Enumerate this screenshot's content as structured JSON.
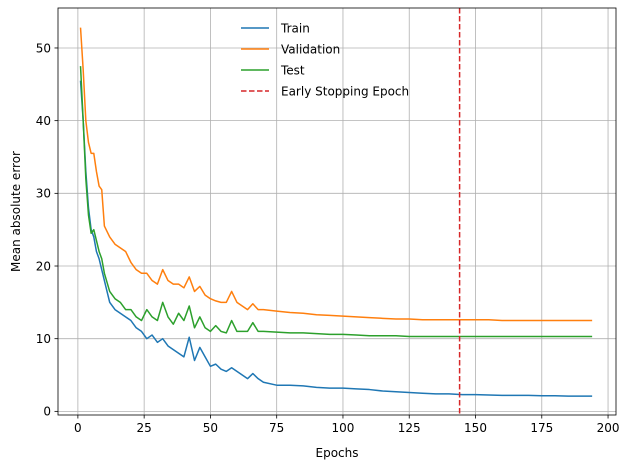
{
  "chart_data": {
    "type": "line",
    "title": "",
    "xlabel": "Epochs",
    "ylabel": "Mean absolute error",
    "xlim": [
      -7.5,
      203
    ],
    "ylim": [
      -0.5,
      55.5
    ],
    "xticks": [
      0,
      25,
      50,
      75,
      100,
      125,
      150,
      175,
      200
    ],
    "yticks": [
      0,
      10,
      20,
      30,
      40,
      50
    ],
    "grid": true,
    "legend": "upper-center",
    "colors": {
      "Train": "#1f77b4",
      "Validation": "#ff7f0e",
      "Test": "#2ca02c",
      "Early Stopping Epoch": "#d62728"
    },
    "series": [
      {
        "name": "Train",
        "x": [
          1,
          2,
          3,
          4,
          5,
          6,
          7,
          8,
          9,
          10,
          12,
          14,
          16,
          18,
          20,
          22,
          24,
          26,
          28,
          30,
          32,
          34,
          36,
          38,
          40,
          42,
          44,
          46,
          48,
          50,
          52,
          54,
          56,
          58,
          60,
          62,
          64,
          66,
          68,
          70,
          75,
          80,
          85,
          90,
          95,
          100,
          105,
          110,
          115,
          120,
          125,
          130,
          135,
          140,
          145,
          150,
          155,
          160,
          165,
          170,
          175,
          180,
          185,
          190,
          194
        ],
        "y": [
          45.5,
          40,
          33,
          28,
          25,
          24,
          22,
          21,
          19.5,
          18,
          15,
          14,
          13.5,
          13,
          12.5,
          11.5,
          11,
          10,
          10.5,
          9.5,
          10,
          9,
          8.5,
          8,
          7.5,
          10.2,
          7,
          8.8,
          7.5,
          6.2,
          6.5,
          5.8,
          5.5,
          6,
          5.5,
          5,
          4.5,
          5.2,
          4.5,
          4,
          3.6,
          3.6,
          3.5,
          3.3,
          3.2,
          3.2,
          3.1,
          3.0,
          2.8,
          2.7,
          2.6,
          2.5,
          2.4,
          2.4,
          2.3,
          2.3,
          2.25,
          2.2,
          2.2,
          2.2,
          2.15,
          2.15,
          2.1,
          2.1,
          2.1
        ]
      },
      {
        "name": "Validation",
        "x": [
          1,
          2,
          3,
          4,
          5,
          6,
          7,
          8,
          9,
          10,
          12,
          14,
          16,
          18,
          20,
          22,
          24,
          26,
          28,
          30,
          32,
          34,
          36,
          38,
          40,
          42,
          44,
          46,
          48,
          50,
          52,
          54,
          56,
          58,
          60,
          62,
          64,
          66,
          68,
          70,
          75,
          80,
          85,
          90,
          95,
          100,
          105,
          110,
          115,
          120,
          125,
          130,
          135,
          140,
          145,
          150,
          155,
          160,
          165,
          170,
          175,
          180,
          185,
          190,
          194
        ],
        "y": [
          52.8,
          47,
          40,
          37,
          35.5,
          35.5,
          33,
          31,
          30.5,
          25.5,
          24,
          23,
          22.5,
          22,
          20.5,
          19.5,
          19,
          19,
          18,
          17.5,
          19.5,
          18,
          17.5,
          17.5,
          17,
          18.5,
          16.5,
          17.2,
          16,
          15.5,
          15.2,
          15,
          15,
          16.5,
          15,
          14.5,
          14,
          14.8,
          14,
          14,
          13.8,
          13.6,
          13.5,
          13.3,
          13.2,
          13.1,
          13.0,
          12.9,
          12.8,
          12.7,
          12.7,
          12.6,
          12.6,
          12.6,
          12.6,
          12.6,
          12.6,
          12.5,
          12.5,
          12.5,
          12.5,
          12.5,
          12.5,
          12.5,
          12.5
        ]
      },
      {
        "name": "Test",
        "x": [
          1,
          2,
          3,
          4,
          5,
          6,
          7,
          8,
          9,
          10,
          12,
          14,
          16,
          18,
          20,
          22,
          24,
          26,
          28,
          30,
          32,
          34,
          36,
          38,
          40,
          42,
          44,
          46,
          48,
          50,
          52,
          54,
          56,
          58,
          60,
          62,
          64,
          66,
          68,
          70,
          75,
          80,
          85,
          90,
          95,
          100,
          105,
          110,
          115,
          120,
          125,
          130,
          135,
          140,
          145,
          150,
          155,
          160,
          165,
          170,
          175,
          180,
          185,
          190,
          194
        ],
        "y": [
          47.5,
          40,
          32,
          27,
          24.5,
          25,
          23.5,
          22,
          21,
          19,
          16.5,
          15.5,
          15,
          14,
          14,
          13,
          12.5,
          14,
          13,
          12.5,
          15,
          13,
          12,
          13.5,
          12.5,
          14.5,
          11.5,
          13,
          11.5,
          11,
          11.8,
          11,
          10.8,
          12.5,
          11,
          11,
          11,
          12.2,
          11,
          11,
          10.9,
          10.8,
          10.8,
          10.7,
          10.6,
          10.6,
          10.5,
          10.4,
          10.4,
          10.4,
          10.3,
          10.3,
          10.3,
          10.3,
          10.3,
          10.3,
          10.3,
          10.3,
          10.3,
          10.3,
          10.3,
          10.3,
          10.3,
          10.3,
          10.3
        ]
      }
    ],
    "vlines": [
      {
        "name": "Early Stopping Epoch",
        "x": 144,
        "style": "dashed"
      }
    ]
  }
}
